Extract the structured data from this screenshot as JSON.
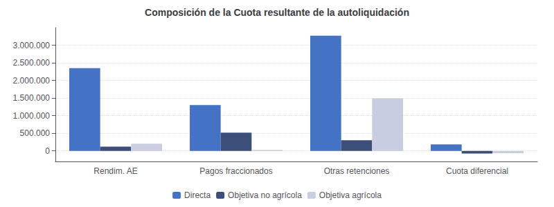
{
  "chart_data": {
    "type": "bar",
    "title": "Composición de la Cuota resultante de la autoliquidación",
    "categories": [
      "Rendim. AE",
      "Pagos fraccionados",
      "Otras retenciones",
      "Cuota diferencial"
    ],
    "series": [
      {
        "name": "Directa",
        "color": "#4472C4",
        "values": [
          2350000,
          1300000,
          3270000,
          185000
        ]
      },
      {
        "name": "Objetiva no agrícola",
        "color": "#3D4F78",
        "values": [
          120000,
          520000,
          300000,
          -75000
        ]
      },
      {
        "name": "Objetiva agrícola",
        "color": "#C9CDE0",
        "values": [
          205000,
          28000,
          1490000,
          -65000
        ]
      }
    ],
    "ylim": [
      -300000,
      3500000
    ],
    "yticks": [
      0,
      {
        "value": 500000,
        "label": "500.000"
      },
      {
        "value": 1000000,
        "label": "1.000.000"
      },
      {
        "value": 1500000,
        "label": "1.500.000"
      },
      {
        "value": 2000000,
        "label": "2.000.000"
      },
      {
        "value": 2500000,
        "label": "2.500.000"
      },
      {
        "value": 3000000,
        "label": "3.000.000"
      }
    ],
    "grid": true,
    "legend": "bottom"
  }
}
